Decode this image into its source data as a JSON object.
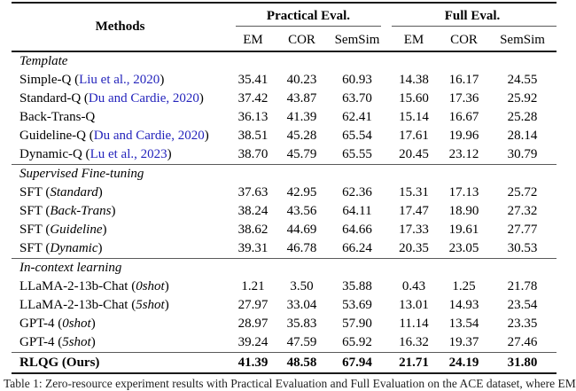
{
  "colors": {
    "citation_link": "#2424BC",
    "text": "#000000",
    "heavy_rule": "#1A1A1A",
    "light_rule": "#5A5A5A"
  },
  "table": {
    "header": {
      "methods": "Methods",
      "groups": [
        {
          "label": "Practical Eval.",
          "cols": [
            "EM",
            "COR",
            "SemSim"
          ]
        },
        {
          "label": "Full Eval.",
          "cols": [
            "EM",
            "COR",
            "SemSim"
          ]
        }
      ]
    },
    "sections": [
      {
        "title": "Template",
        "rows": [
          {
            "parts": [
              {
                "t": "Simple-Q ("
              },
              {
                "t": "Liu et al., 2020",
                "style": "cite"
              },
              {
                "t": ")"
              }
            ],
            "values": [
              "35.41",
              "40.23",
              "60.93",
              "14.38",
              "16.17",
              "24.55"
            ]
          },
          {
            "parts": [
              {
                "t": "Standard-Q ("
              },
              {
                "t": "Du and Cardie, 2020",
                "style": "cite"
              },
              {
                "t": ")"
              }
            ],
            "values": [
              "37.42",
              "43.87",
              "63.70",
              "15.60",
              "17.36",
              "25.92"
            ]
          },
          {
            "parts": [
              {
                "t": "Back-Trans-Q"
              }
            ],
            "values": [
              "36.13",
              "41.39",
              "62.41",
              "15.14",
              "16.67",
              "25.28"
            ]
          },
          {
            "parts": [
              {
                "t": "Guideline-Q ("
              },
              {
                "t": "Du and Cardie, 2020",
                "style": "cite"
              },
              {
                "t": ")"
              }
            ],
            "values": [
              "38.51",
              "45.28",
              "65.54",
              "17.61",
              "19.96",
              "28.14"
            ]
          },
          {
            "parts": [
              {
                "t": "Dynamic-Q ("
              },
              {
                "t": "Lu et al., 2023",
                "style": "cite"
              },
              {
                "t": ")"
              }
            ],
            "values": [
              "38.70",
              "45.79",
              "65.55",
              "20.45",
              "23.12",
              "30.79"
            ]
          }
        ]
      },
      {
        "title": "Supervised Fine-tuning",
        "rows": [
          {
            "parts": [
              {
                "t": "SFT ("
              },
              {
                "t": "Standard",
                "style": "emph"
              },
              {
                "t": ")"
              }
            ],
            "values": [
              "37.63",
              "42.95",
              "62.36",
              "15.31",
              "17.13",
              "25.72"
            ]
          },
          {
            "parts": [
              {
                "t": "SFT ("
              },
              {
                "t": "Back-Trans",
                "style": "emph"
              },
              {
                "t": ")"
              }
            ],
            "values": [
              "38.24",
              "43.56",
              "64.11",
              "17.47",
              "18.90",
              "27.32"
            ]
          },
          {
            "parts": [
              {
                "t": "SFT ("
              },
              {
                "t": "Guideline",
                "style": "emph"
              },
              {
                "t": ")"
              }
            ],
            "values": [
              "38.62",
              "44.69",
              "64.66",
              "17.33",
              "19.61",
              "27.77"
            ]
          },
          {
            "parts": [
              {
                "t": "SFT ("
              },
              {
                "t": "Dynamic",
                "style": "emph"
              },
              {
                "t": ")"
              }
            ],
            "values": [
              "39.31",
              "46.78",
              "66.24",
              "20.35",
              "23.05",
              "30.53"
            ]
          }
        ]
      },
      {
        "title": "In-context learning",
        "rows": [
          {
            "parts": [
              {
                "t": "LLaMA-2-13b-Chat ("
              },
              {
                "t": "0shot",
                "style": "emph"
              },
              {
                "t": ")"
              }
            ],
            "values": [
              "1.21",
              "3.50",
              "35.88",
              "0.43",
              "1.25",
              "21.78"
            ]
          },
          {
            "parts": [
              {
                "t": "LLaMA-2-13b-Chat ("
              },
              {
                "t": "5shot",
                "style": "emph"
              },
              {
                "t": ")"
              }
            ],
            "values": [
              "27.97",
              "33.04",
              "53.69",
              "13.01",
              "14.93",
              "23.54"
            ]
          },
          {
            "parts": [
              {
                "t": "GPT-4 ("
              },
              {
                "t": "0shot",
                "style": "emph"
              },
              {
                "t": ")"
              }
            ],
            "values": [
              "28.97",
              "35.83",
              "57.90",
              "11.14",
              "13.54",
              "23.35"
            ]
          },
          {
            "parts": [
              {
                "t": "GPT-4 ("
              },
              {
                "t": "5shot",
                "style": "emph"
              },
              {
                "t": ")"
              }
            ],
            "values": [
              "39.24",
              "47.59",
              "65.92",
              "16.32",
              "19.37",
              "27.46"
            ]
          }
        ]
      }
    ],
    "final_row": {
      "parts": [
        {
          "t": "RLQG (Ours)"
        }
      ],
      "values": [
        "41.39",
        "48.58",
        "67.94",
        "21.71",
        "24.19",
        "31.80"
      ]
    }
  },
  "caption": "Table 1: Zero-resource experiment results with Practical Evaluation and Full Evaluation on the ACE dataset, where EM"
}
